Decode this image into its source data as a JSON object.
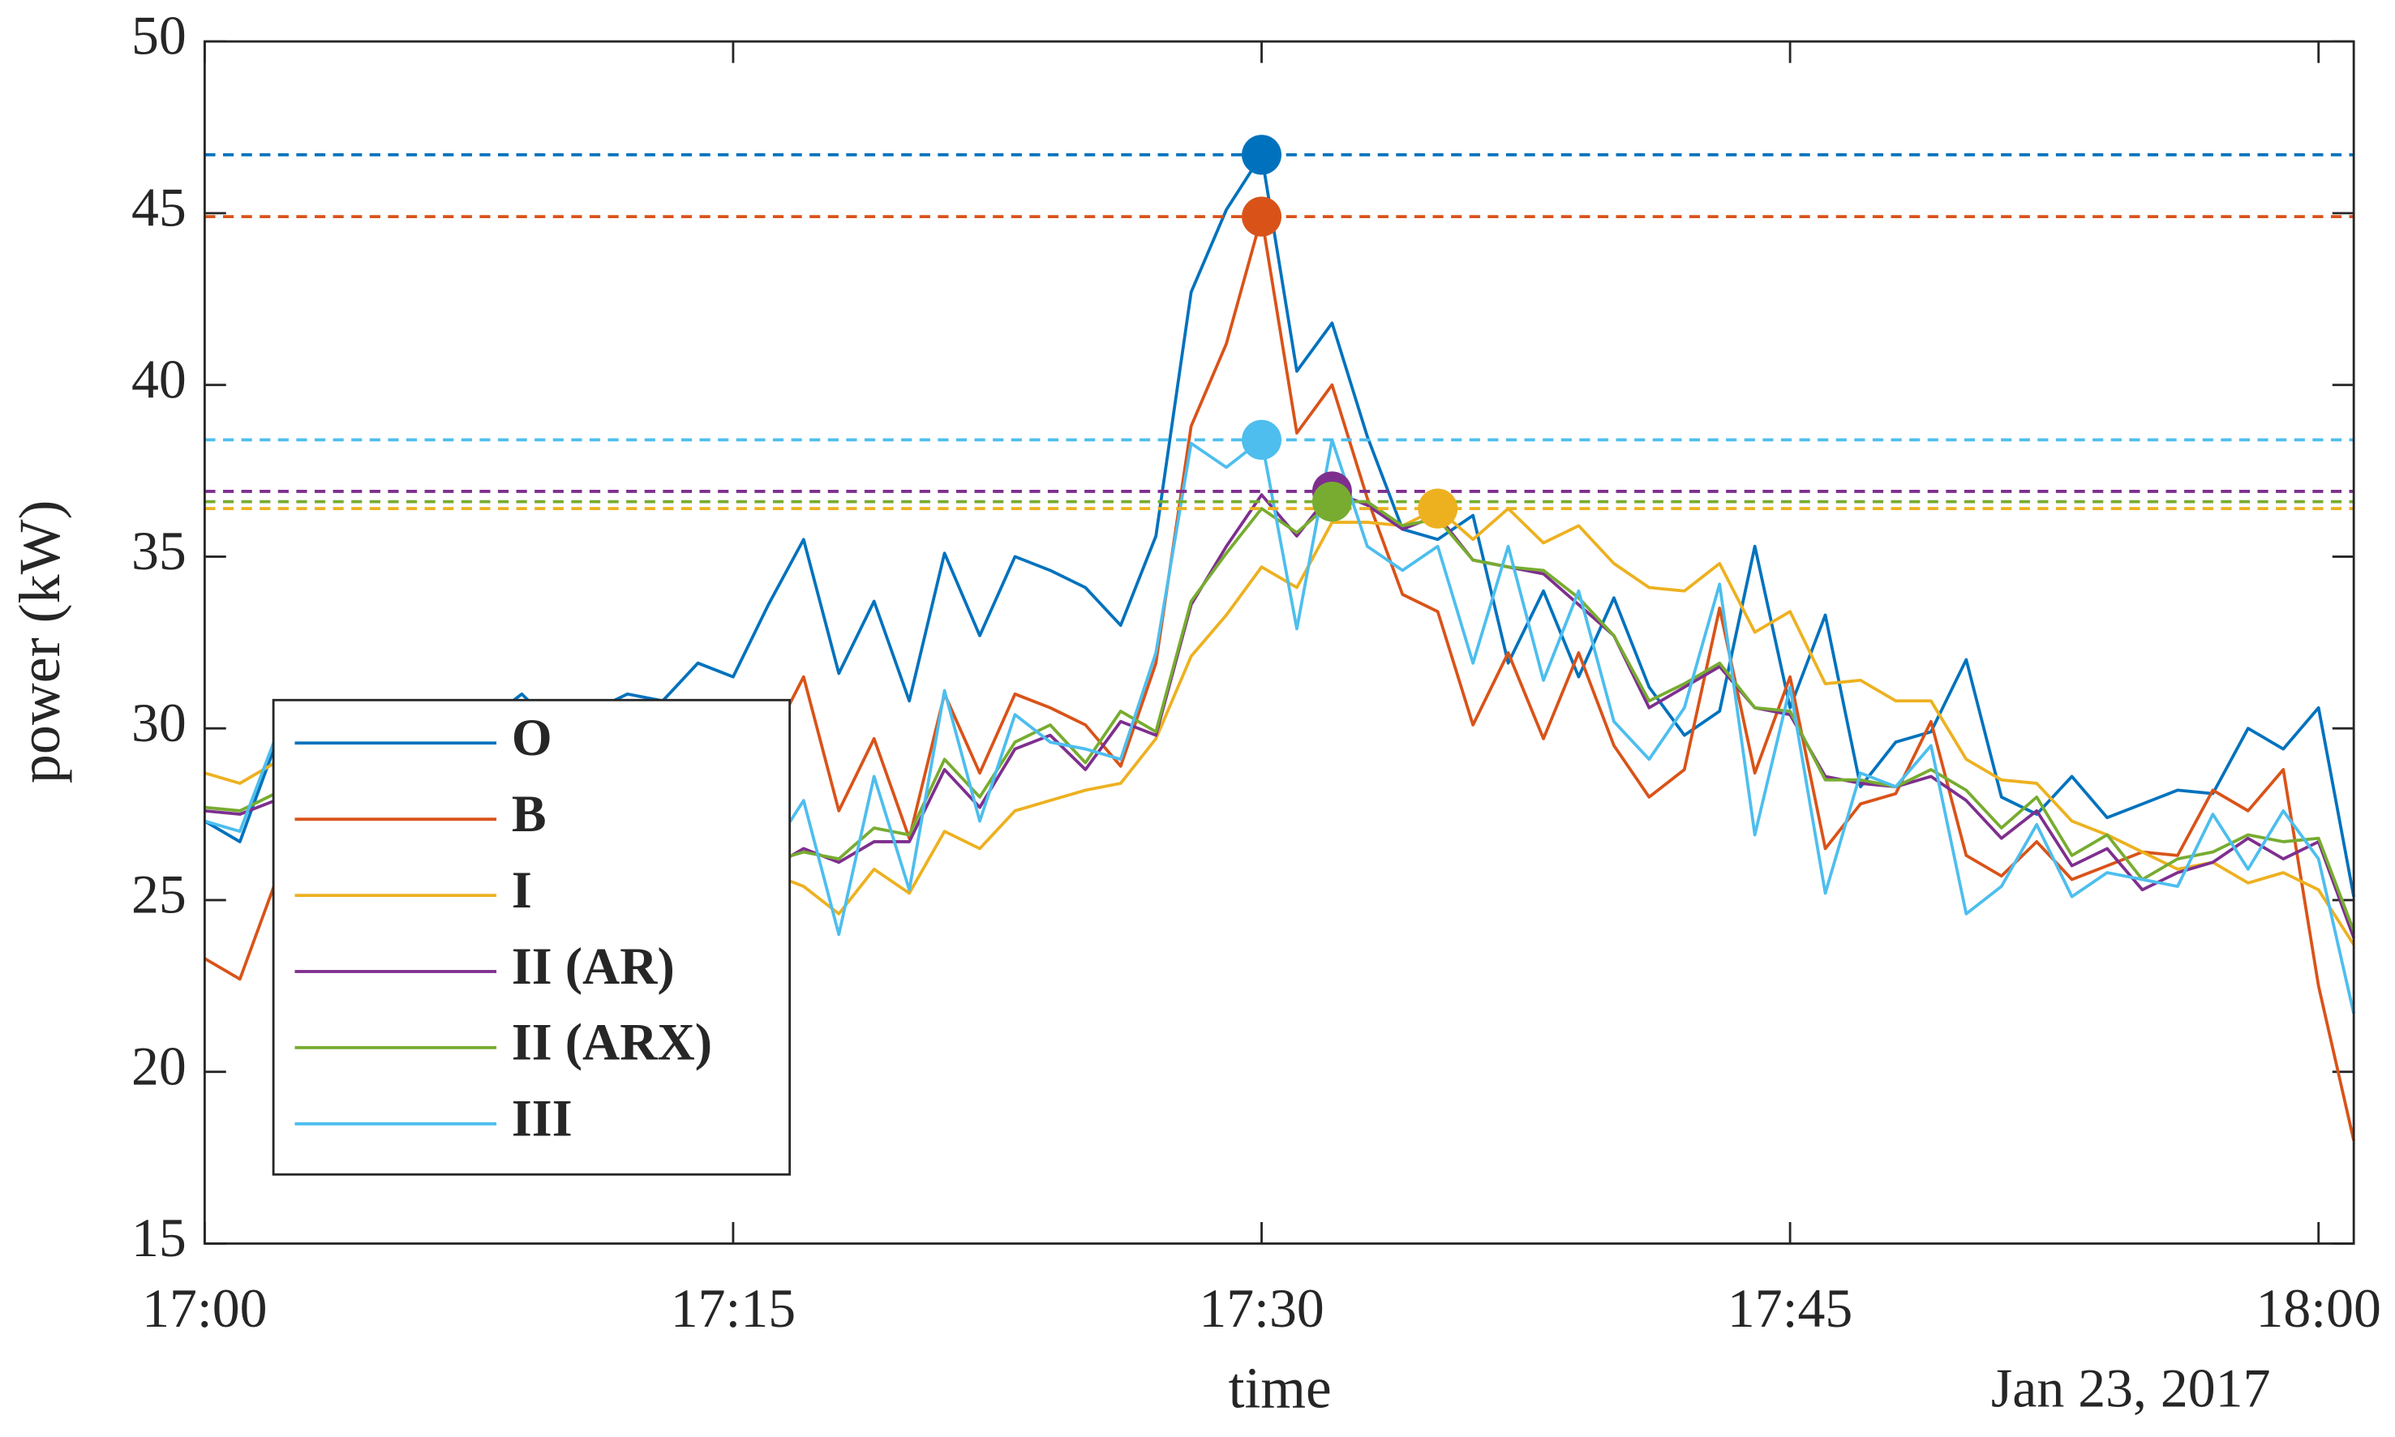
{
  "chart_data": {
    "type": "line",
    "xlabel": "time",
    "ylabel": "power (kW)",
    "date_label": "Jan 23, 2017",
    "x": [
      0,
      1,
      2,
      3,
      4,
      5,
      6,
      7,
      8,
      9,
      10,
      11,
      12,
      13,
      14,
      15,
      16,
      17,
      18,
      19,
      20,
      21,
      22,
      23,
      24,
      25,
      26,
      27,
      28,
      29,
      30,
      31,
      32,
      33,
      34,
      35,
      36,
      37,
      38,
      39,
      40,
      41,
      42,
      43,
      44,
      45,
      46,
      47,
      48,
      49,
      50,
      51,
      52,
      53,
      54,
      55,
      56,
      57,
      58,
      59,
      60,
      61
    ],
    "xlim": [
      0,
      61
    ],
    "xticks": [
      {
        "value": 0,
        "label": "17:00"
      },
      {
        "value": 15,
        "label": "17:15"
      },
      {
        "value": 30,
        "label": "17:30"
      },
      {
        "value": 45,
        "label": "17:45"
      },
      {
        "value": 60,
        "label": "18:00"
      }
    ],
    "ylim": [
      15,
      50
    ],
    "yticks": [
      15,
      20,
      25,
      30,
      35,
      40,
      45,
      50
    ],
    "legend": "lower left",
    "series": [
      {
        "name": "O",
        "color": "#0072bd",
        "peak_x": 30,
        "peak": 46.7,
        "values": [
          27.3,
          26.7,
          29.5,
          29,
          30,
          29.5,
          30.5,
          29.8,
          30.2,
          31,
          30,
          30.5,
          31,
          30.8,
          31.9,
          31.5,
          33.6,
          35.5,
          31.6,
          33.7,
          30.8,
          35.1,
          32.7,
          35.0,
          34.6,
          34.1,
          33.0,
          35.6,
          42.7,
          45.1,
          46.7,
          40.4,
          41.8,
          38.5,
          35.8,
          35.5,
          36.2,
          31.9,
          34.0,
          31.5,
          33.8,
          31.2,
          29.8,
          30.5,
          35.3,
          30.6,
          33.3,
          28.3,
          29.6,
          29.9,
          32.0,
          28.0,
          27.5,
          28.6,
          27.4,
          27.8,
          28.2,
          28.1,
          30.0,
          29.4,
          30.6,
          25.1
        ]
      },
      {
        "name": "B",
        "color": "#d95319",
        "peak_x": 30,
        "peak": 44.9,
        "values": [
          23.3,
          22.7,
          25.5,
          27,
          28,
          27.5,
          28,
          27.8,
          28.5,
          28,
          29,
          28.5,
          29,
          28.7,
          29.2,
          28.9,
          29.5,
          31.5,
          27.6,
          29.7,
          26.8,
          31.0,
          28.7,
          31.0,
          30.6,
          30.1,
          28.9,
          31.9,
          38.8,
          41.2,
          44.9,
          38.6,
          40.0,
          36.7,
          33.9,
          33.4,
          30.1,
          32.2,
          29.7,
          32.2,
          29.5,
          28.0,
          28.8,
          33.5,
          28.7,
          31.5,
          26.5,
          27.8,
          28.1,
          30.2,
          26.3,
          25.7,
          26.7,
          25.6,
          26.0,
          26.4,
          26.3,
          28.2,
          27.6,
          28.8,
          22.5,
          18.0
        ]
      },
      {
        "name": "I",
        "color": "#edb120",
        "peak_x": 35,
        "peak": 36.4,
        "values": [
          28.7,
          28.4,
          29.0,
          28.5,
          28.2,
          27.9,
          27.6,
          27.3,
          27,
          26.8,
          26.6,
          26.5,
          26.3,
          26.1,
          26,
          25.9,
          25.8,
          25.4,
          24.6,
          25.9,
          25.2,
          27.0,
          26.5,
          27.6,
          27.9,
          28.2,
          28.4,
          29.7,
          32.1,
          33.3,
          34.7,
          34.1,
          36.0,
          36.0,
          35.9,
          36.4,
          35.5,
          36.4,
          35.4,
          35.9,
          34.8,
          34.1,
          34.0,
          34.8,
          32.8,
          33.4,
          31.3,
          31.4,
          30.8,
          30.8,
          29.1,
          28.5,
          28.4,
          27.3,
          26.9,
          26.4,
          25.9,
          26.1,
          25.5,
          25.8,
          25.3,
          23.7
        ]
      },
      {
        "name": "II (AR)",
        "color": "#7e2f8e",
        "peak_x": 32,
        "peak": 36.9,
        "values": [
          27.6,
          27.5,
          27.9,
          28,
          27.8,
          27.5,
          27.3,
          27,
          26.8,
          26.6,
          26.5,
          26.3,
          26.2,
          26.1,
          26,
          25.9,
          25.9,
          26.5,
          26.1,
          26.7,
          26.7,
          28.8,
          27.7,
          29.4,
          29.8,
          28.8,
          30.2,
          29.8,
          33.6,
          35.3,
          36.8,
          35.6,
          36.9,
          36.5,
          35.8,
          36.2,
          34.9,
          34.7,
          34.5,
          33.6,
          32.7,
          30.6,
          31.2,
          31.8,
          30.6,
          30.4,
          28.6,
          28.4,
          28.3,
          28.6,
          27.9,
          26.8,
          27.6,
          26.0,
          26.5,
          25.3,
          25.8,
          26.1,
          26.8,
          26.2,
          26.7,
          23.9
        ]
      },
      {
        "name": "II (ARX)",
        "color": "#77ac30",
        "peak_x": 32,
        "peak": 36.6,
        "values": [
          27.7,
          27.6,
          28.1,
          28.1,
          27.9,
          27.6,
          27.4,
          27.1,
          26.9,
          26.7,
          26.6,
          26.4,
          26.3,
          26.2,
          26.1,
          26.0,
          26.1,
          26.4,
          26.2,
          27.1,
          26.9,
          29.1,
          28.0,
          29.6,
          30.1,
          29.0,
          30.5,
          29.9,
          33.7,
          35.1,
          36.4,
          35.7,
          36.6,
          36.6,
          35.9,
          36.1,
          34.9,
          34.7,
          34.6,
          33.8,
          32.7,
          30.8,
          31.3,
          31.9,
          30.6,
          30.5,
          28.5,
          28.5,
          28.3,
          28.8,
          28.2,
          27.1,
          28.0,
          26.3,
          26.9,
          25.6,
          26.2,
          26.4,
          26.9,
          26.7,
          26.8,
          24.1
        ]
      },
      {
        "name": "III",
        "color": "#4dbeee",
        "peak_x": 30,
        "peak": 38.4,
        "values": [
          27.3,
          27.0,
          29.7,
          28.5,
          28,
          27.6,
          27.2,
          27,
          26.8,
          26.5,
          26.4,
          26.2,
          26.1,
          26,
          26.1,
          26.2,
          26.3,
          27.9,
          24.0,
          28.6,
          25.3,
          31.1,
          27.3,
          30.4,
          29.6,
          29.4,
          29.1,
          32.2,
          38.3,
          37.6,
          38.4,
          32.9,
          38.4,
          35.3,
          34.6,
          35.3,
          31.9,
          35.3,
          31.4,
          34.0,
          30.2,
          29.1,
          30.6,
          34.2,
          26.9,
          31.2,
          25.2,
          28.7,
          28.3,
          29.5,
          24.6,
          25.4,
          27.2,
          25.1,
          25.8,
          25.6,
          25.4,
          27.5,
          25.9,
          27.6,
          26.2,
          21.7
        ]
      }
    ]
  }
}
